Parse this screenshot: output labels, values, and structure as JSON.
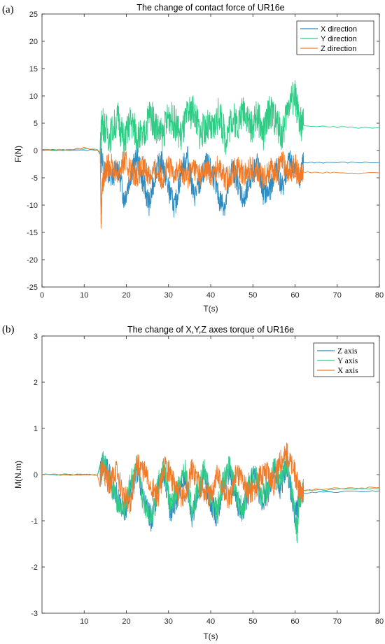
{
  "chart_data": [
    {
      "type": "line",
      "panel_label": "(a)",
      "title": "The change of contact force of UR16e",
      "xlabel": "T(s)",
      "ylabel": "F(N)",
      "xlim": [
        0,
        80
      ],
      "ylim": [
        -25,
        25
      ],
      "xticks": [
        0,
        10,
        20,
        30,
        40,
        50,
        60,
        70,
        80
      ],
      "yticks": [
        -25,
        -20,
        -15,
        -10,
        -5,
        0,
        5,
        10,
        15,
        20,
        25
      ],
      "grid": false,
      "legend_position": "top-right",
      "series": [
        {
          "name": "X direction",
          "color": "#2e8bc0",
          "x": [
            0,
            5,
            10,
            13.8,
            14.2,
            16,
            18,
            19.5,
            21,
            22.5,
            24,
            25.5,
            27,
            28.5,
            30,
            31.5,
            33,
            34.5,
            36,
            37.5,
            39,
            40.5,
            42,
            43.5,
            45,
            46.5,
            48,
            49.5,
            51,
            52.5,
            54,
            55.5,
            57,
            58.5,
            60,
            61,
            62,
            65,
            70,
            75,
            80
          ],
          "y": [
            0.1,
            0.1,
            0.0,
            0.2,
            -2.0,
            -5.5,
            -3.0,
            -9.0,
            -4.5,
            -1.0,
            -6.0,
            -10.0,
            -3.5,
            -2.0,
            -7.0,
            -10.5,
            -4.0,
            -1.0,
            -8.5,
            -6.0,
            -2.5,
            -4.0,
            -9.0,
            -10.0,
            -3.0,
            -6.0,
            -9.5,
            -5.0,
            -2.0,
            -8.0,
            -7.5,
            -3.0,
            -7.0,
            -2.0,
            -3.0,
            -5.0,
            -2.2,
            -2.2,
            -2.2,
            -2.2,
            -2.2
          ]
        },
        {
          "name": "Y direction",
          "color": "#2ecc84",
          "x": [
            0,
            5,
            10,
            13.8,
            14.2,
            16,
            18,
            19.5,
            21,
            22.5,
            24,
            25.5,
            27,
            28.5,
            30,
            31.5,
            33,
            34.5,
            36,
            37.5,
            39,
            40.5,
            42,
            43.5,
            45,
            46.5,
            48,
            49.5,
            51,
            52.5,
            54,
            55.5,
            57,
            58.5,
            60,
            61,
            62,
            65,
            70,
            75,
            80
          ],
          "y": [
            0.2,
            0.1,
            0.3,
            0.2,
            5.5,
            2.5,
            6.0,
            1.5,
            5.5,
            3.0,
            2.0,
            7.0,
            4.5,
            2.5,
            6.5,
            5.0,
            2.5,
            6.5,
            7.5,
            3.0,
            4.5,
            3.5,
            7.0,
            2.0,
            6.0,
            5.0,
            8.0,
            4.0,
            6.5,
            3.0,
            7.5,
            5.5,
            2.5,
            9.0,
            10.0,
            5.0,
            4.6,
            4.4,
            4.3,
            4.2,
            4.2
          ]
        },
        {
          "name": "Z direction",
          "color": "#f07a28",
          "x": [
            0,
            5,
            10,
            13.8,
            14.0,
            14.3,
            15,
            16,
            18,
            19.5,
            21,
            22.5,
            24,
            25.5,
            27,
            28.5,
            30,
            31.5,
            33,
            34.5,
            36,
            37.5,
            39,
            40.5,
            42,
            43.5,
            45,
            46.5,
            48,
            49.5,
            51,
            52.5,
            54,
            55.5,
            57,
            58.5,
            60,
            61,
            62,
            65,
            70,
            75,
            80
          ],
          "y": [
            0.0,
            0.0,
            0.5,
            0.0,
            -12.8,
            -6.0,
            -3.5,
            -2.5,
            -4.0,
            -2.0,
            -3.5,
            -4.5,
            -3.0,
            -4.5,
            -3.5,
            -5.0,
            -3.0,
            -4.0,
            -3.5,
            -5.0,
            -3.0,
            -4.5,
            -3.5,
            -4.5,
            -2.5,
            -5.5,
            -4.0,
            -3.0,
            -4.5,
            -3.0,
            -4.0,
            -5.0,
            -3.5,
            -4.0,
            -2.0,
            -4.5,
            -2.5,
            -5.0,
            -4.0,
            -4.0,
            -4.1,
            -4.1,
            -4.1
          ]
        }
      ]
    },
    {
      "type": "line",
      "panel_label": "(b)",
      "title": "The change of X,Y,Z axes torque of UR16e",
      "xlabel": "T(s)",
      "ylabel": "M(N.m)",
      "xlim": [
        0,
        80
      ],
      "ylim": [
        -3,
        3
      ],
      "xticks": [
        10,
        20,
        30,
        40,
        50,
        60,
        70,
        80
      ],
      "yticks": [
        -3,
        -2,
        -1,
        0,
        1,
        2,
        3
      ],
      "grid": false,
      "legend_position": "top-right",
      "series": [
        {
          "name": "Z axis",
          "color": "#2e8bc0",
          "x": [
            0,
            5,
            10,
            13.8,
            14.5,
            16,
            17.5,
            19.5,
            21,
            22.5,
            24,
            26,
            27.5,
            29,
            30.5,
            32,
            34,
            35.5,
            37,
            38.5,
            40,
            41.5,
            43,
            44.5,
            46,
            47.5,
            49,
            50.5,
            52,
            53.5,
            55,
            56.5,
            58,
            60,
            61,
            62,
            65,
            70,
            75,
            80
          ],
          "y": [
            0.0,
            0.0,
            0.0,
            0.0,
            0.25,
            0.0,
            -0.4,
            -0.9,
            -0.3,
            0.1,
            -0.5,
            -1.0,
            -0.3,
            0.0,
            -0.8,
            -0.5,
            0.0,
            -0.9,
            -0.4,
            0.0,
            -0.6,
            -0.9,
            -0.2,
            0.1,
            -0.5,
            -0.9,
            -0.3,
            0.0,
            -0.6,
            -0.4,
            0.1,
            -0.3,
            0.2,
            -0.9,
            -0.5,
            -0.4,
            -0.38,
            -0.37,
            -0.36,
            -0.35
          ]
        },
        {
          "name": "Y axis",
          "color": "#2ecc84",
          "x": [
            0,
            5,
            10,
            13.8,
            14.5,
            16,
            17.5,
            19.5,
            21,
            22.5,
            24,
            26,
            27.5,
            29,
            30.5,
            32,
            34,
            35.5,
            37,
            38.5,
            40,
            41.5,
            43,
            44.5,
            46,
            47.5,
            49,
            50.5,
            52,
            53.5,
            55,
            56.5,
            58,
            60,
            60.5,
            61,
            62,
            65,
            70,
            75,
            80
          ],
          "y": [
            0.0,
            0.0,
            0.0,
            0.0,
            0.3,
            -0.1,
            -0.5,
            -0.8,
            -0.2,
            0.2,
            -0.6,
            -0.9,
            -0.2,
            0.1,
            -0.7,
            -0.4,
            0.1,
            -0.8,
            -0.3,
            0.1,
            -0.5,
            -0.8,
            -0.1,
            0.2,
            -0.4,
            -0.8,
            -0.2,
            0.1,
            -0.5,
            -0.3,
            0.2,
            -0.2,
            0.3,
            -0.8,
            -1.3,
            -0.5,
            -0.35,
            -0.33,
            -0.32,
            -0.31,
            -0.3
          ]
        },
        {
          "name": "X axis",
          "color": "#f07a28",
          "x": [
            0,
            5,
            10,
            13.8,
            14.5,
            16,
            17.5,
            19.5,
            21,
            22.5,
            24,
            26,
            27.5,
            29,
            30.5,
            32,
            34,
            35.5,
            37,
            38.5,
            40,
            41.5,
            43,
            44.5,
            46,
            47.5,
            49,
            50.5,
            52,
            53.5,
            55,
            56.5,
            58,
            60,
            61,
            62,
            65,
            70,
            75,
            80
          ],
          "y": [
            0.0,
            0.0,
            0.0,
            0.0,
            0.1,
            -0.2,
            0.1,
            -0.5,
            -0.6,
            0.2,
            0.1,
            -0.3,
            -0.5,
            0.2,
            0.0,
            -0.4,
            -0.5,
            0.1,
            -0.1,
            -0.4,
            -0.5,
            0.0,
            -0.3,
            -0.6,
            0.1,
            -0.1,
            -0.4,
            -0.3,
            0.0,
            0.1,
            -0.2,
            0.3,
            0.45,
            0.0,
            -0.4,
            -0.35,
            -0.32,
            -0.3,
            -0.29,
            -0.28
          ]
        }
      ]
    }
  ]
}
